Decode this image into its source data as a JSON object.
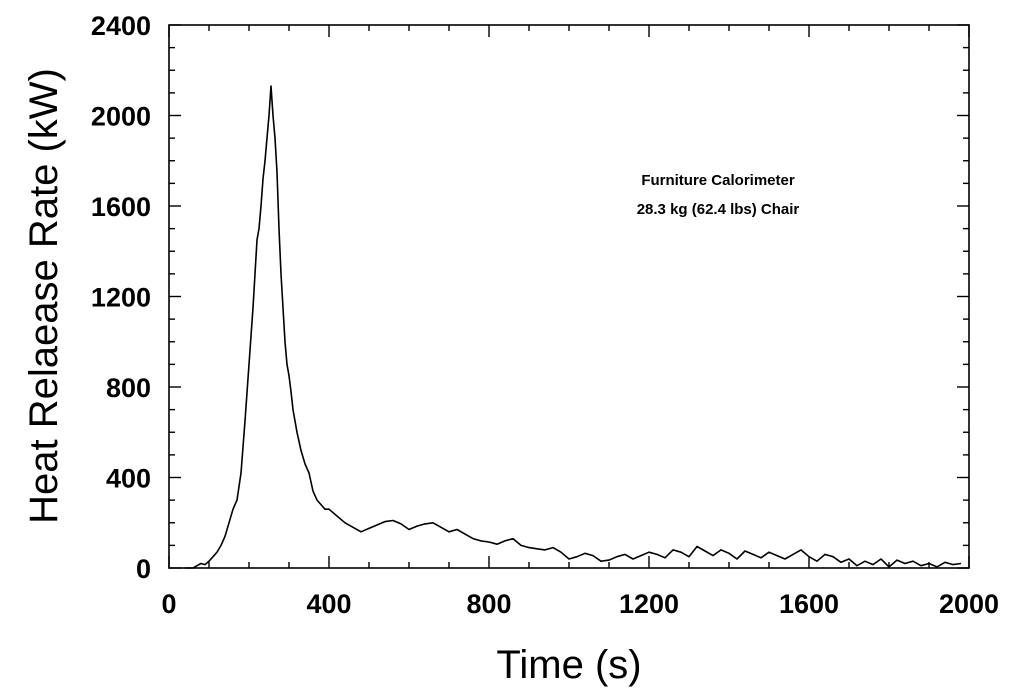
{
  "chart_data": {
    "type": "line",
    "title": "",
    "xlabel": "Time (s)",
    "ylabel": "Heat Relaease Rate (kW)",
    "xlim": [
      0,
      2000
    ],
    "ylim": [
      0,
      2400
    ],
    "xticks": [
      0,
      400,
      800,
      1200,
      1600,
      2000
    ],
    "yticks": [
      0,
      400,
      800,
      1200,
      1600,
      2000,
      2400
    ],
    "xminor_step": 100,
    "yminor_step": 100,
    "grid": false,
    "annotation": [
      "Furniture Calorimeter",
      "28.3 kg (62.4 lbs) Chair"
    ],
    "series": [
      {
        "color": "#000000",
        "x": [
          40,
          60,
          70,
          80,
          90,
          100,
          110,
          120,
          130,
          140,
          150,
          160,
          170,
          180,
          190,
          200,
          210,
          215,
          220,
          225,
          230,
          235,
          240,
          245,
          250,
          255,
          260,
          265,
          270,
          275,
          280,
          285,
          290,
          295,
          300,
          305,
          310,
          320,
          330,
          340,
          350,
          360,
          370,
          380,
          390,
          400,
          420,
          440,
          460,
          480,
          500,
          520,
          540,
          560,
          580,
          600,
          620,
          640,
          660,
          680,
          700,
          720,
          740,
          760,
          780,
          800,
          820,
          840,
          860,
          880,
          900,
          920,
          940,
          960,
          980,
          1000,
          1020,
          1040,
          1060,
          1080,
          1100,
          1120,
          1140,
          1160,
          1180,
          1200,
          1220,
          1240,
          1260,
          1280,
          1300,
          1320,
          1340,
          1360,
          1380,
          1400,
          1420,
          1440,
          1460,
          1480,
          1500,
          1520,
          1540,
          1560,
          1580,
          1600,
          1620,
          1640,
          1660,
          1680,
          1700,
          1720,
          1740,
          1760,
          1780,
          1800,
          1820,
          1840,
          1860,
          1880,
          1900,
          1920,
          1940,
          1960,
          1980
        ],
        "y": [
          0,
          0,
          10,
          20,
          15,
          30,
          50,
          70,
          100,
          140,
          200,
          260,
          300,
          420,
          650,
          900,
          1150,
          1300,
          1450,
          1500,
          1600,
          1720,
          1800,
          1900,
          2000,
          2130,
          2000,
          1900,
          1750,
          1500,
          1300,
          1150,
          1000,
          900,
          850,
          780,
          700,
          600,
          520,
          460,
          420,
          340,
          300,
          280,
          260,
          260,
          230,
          200,
          180,
          160,
          175,
          190,
          205,
          210,
          195,
          170,
          185,
          195,
          200,
          180,
          160,
          170,
          150,
          130,
          120,
          115,
          105,
          120,
          130,
          100,
          90,
          85,
          80,
          90,
          70,
          40,
          50,
          65,
          55,
          30,
          35,
          50,
          60,
          40,
          55,
          70,
          60,
          45,
          80,
          70,
          50,
          95,
          75,
          55,
          80,
          65,
          40,
          75,
          60,
          45,
          70,
          55,
          40,
          60,
          80,
          50,
          30,
          60,
          50,
          25,
          40,
          10,
          30,
          15,
          40,
          5,
          35,
          20,
          30,
          10,
          20,
          5,
          25,
          15,
          20
        ]
      }
    ]
  }
}
